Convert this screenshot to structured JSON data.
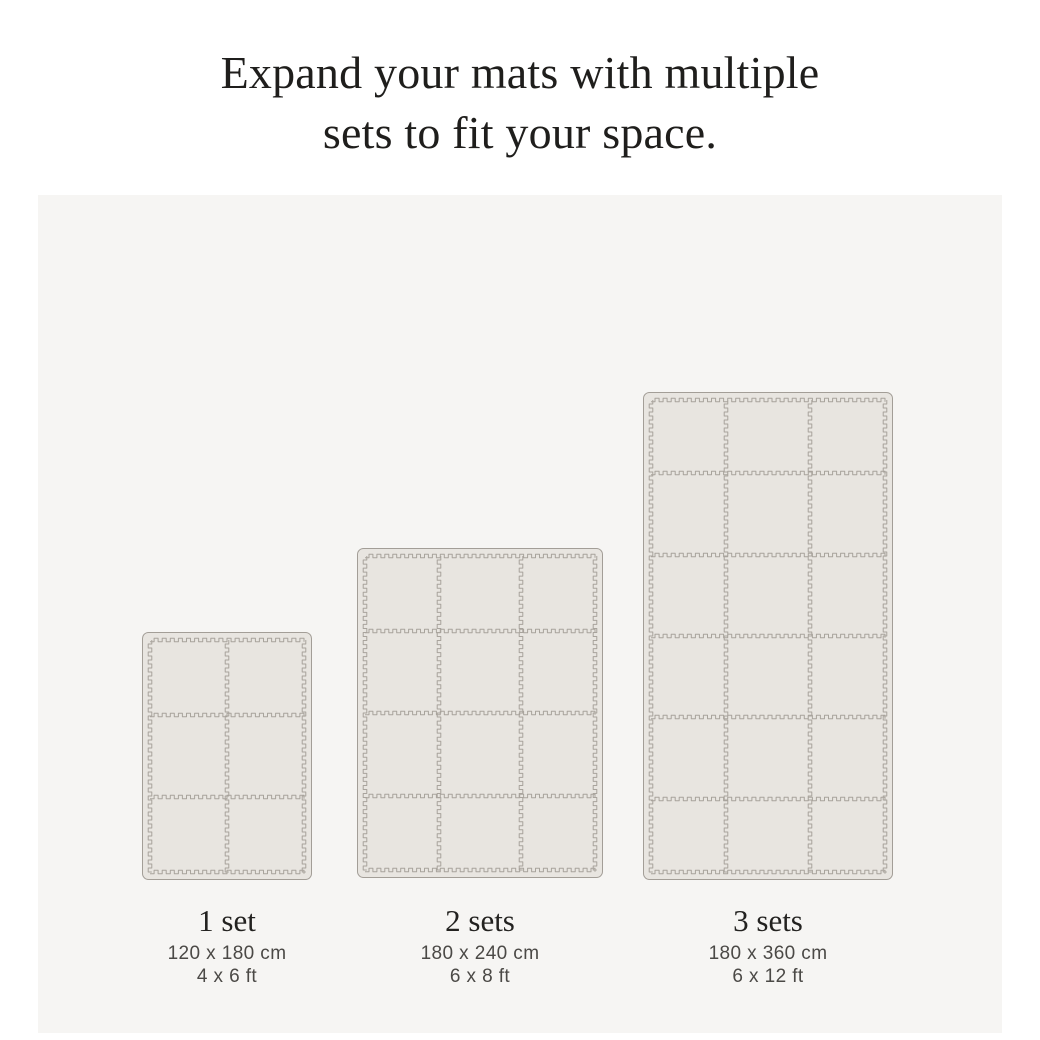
{
  "header": {
    "title_line1": "Expand your mats with multiple",
    "title_line2": "sets to fit your space."
  },
  "mats": [
    {
      "sets_label": "1 set",
      "dimensions_cm": "120 x 180 cm",
      "dimensions_ft": "4 x 6 ft",
      "grid_columns": 2,
      "grid_rows": 3,
      "tile_count": 6
    },
    {
      "sets_label": "2 sets",
      "dimensions_cm": "180 x 240 cm",
      "dimensions_ft": "6 x 8 ft",
      "grid_columns": 3,
      "grid_rows": 4,
      "tile_count": 12
    },
    {
      "sets_label": "3 sets",
      "dimensions_cm": "180 x 360 cm",
      "dimensions_ft": "6 x 12 ft",
      "grid_columns": 3,
      "grid_rows": 6,
      "tile_count": 18
    }
  ],
  "colors": {
    "page_background": "#ffffff",
    "panel_background": "#f6f5f3",
    "tile_fill": "#e8e5e0",
    "seam_line": "#a8a39c",
    "mat_outline": "#a39e97",
    "title_text": "#1f1e1c",
    "sets_text": "#232220",
    "dimensions_text": "#4b4946"
  }
}
